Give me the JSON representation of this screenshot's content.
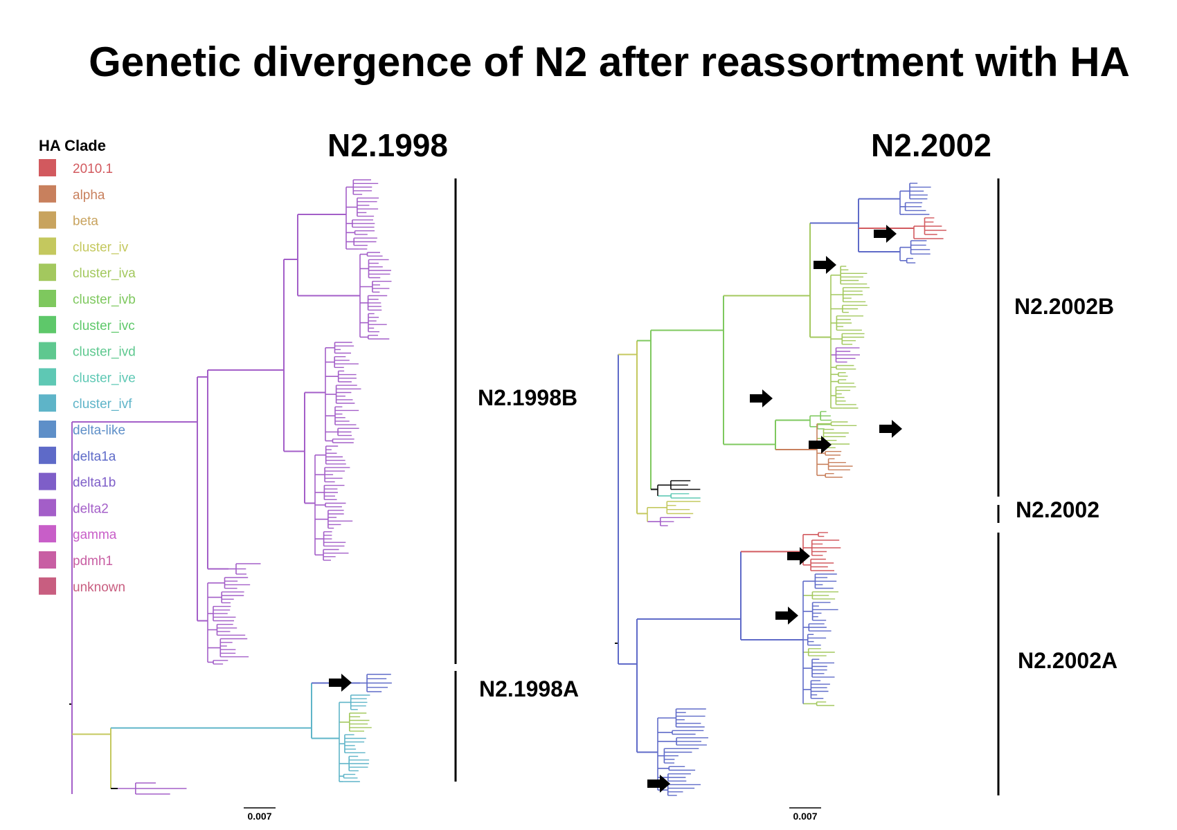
{
  "title": "Genetic divergence of N2 after reassortment with HA",
  "legend": {
    "title": "HA Clade",
    "items": [
      {
        "label": "2010.1",
        "color": "#d2595e"
      },
      {
        "label": "alpha",
        "color": "#c8805d"
      },
      {
        "label": "beta",
        "color": "#c8a35e"
      },
      {
        "label": "cluster_iv",
        "color": "#c4c85e"
      },
      {
        "label": "cluster_iva",
        "color": "#a3c85e"
      },
      {
        "label": "cluster_ivb",
        "color": "#7ec85e"
      },
      {
        "label": "cluster_ivc",
        "color": "#5ec86a"
      },
      {
        "label": "cluster_ivd",
        "color": "#5ec88f"
      },
      {
        "label": "cluster_ive",
        "color": "#5ec8b4"
      },
      {
        "label": "cluster_ivf",
        "color": "#5eb4c8"
      },
      {
        "label": "delta-like",
        "color": "#5e8fc8"
      },
      {
        "label": "delta1a",
        "color": "#5e6ac8"
      },
      {
        "label": "delta1b",
        "color": "#7e5ec8"
      },
      {
        "label": "delta2",
        "color": "#a35ec8"
      },
      {
        "label": "gamma",
        "color": "#c85ec8"
      },
      {
        "label": "pdmh1",
        "color": "#c85ea3"
      },
      {
        "label": "unknown",
        "color": "#c85e80"
      }
    ]
  },
  "trees": [
    {
      "name": "N2.1998",
      "scale_label": "0.007",
      "clades": [
        {
          "label": "N2.1998B"
        },
        {
          "label": "N2.1998A"
        }
      ]
    },
    {
      "name": "N2.2002",
      "scale_label": "0.007",
      "clades": [
        {
          "label": "N2.2002B"
        },
        {
          "label": "N2.2002"
        },
        {
          "label": "N2.2002A"
        }
      ]
    }
  ]
}
